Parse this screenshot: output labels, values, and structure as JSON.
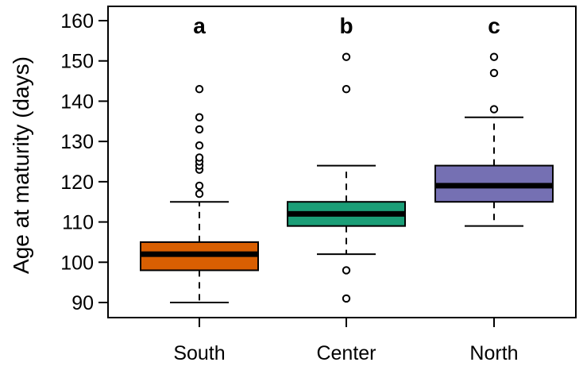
{
  "chart_data": {
    "type": "box",
    "ylabel": "Age at maturity (days)",
    "xlabel": "",
    "ylim": [
      87,
      164
    ],
    "yticks": [
      90,
      100,
      110,
      120,
      130,
      140,
      150,
      160
    ],
    "grid": false,
    "categories": [
      "South",
      "Center",
      "North"
    ],
    "letters": [
      "a",
      "b",
      "c"
    ],
    "colors": [
      "#d95f02",
      "#1b9e77",
      "#7570b3"
    ],
    "boxes": [
      {
        "name": "South",
        "whisker_low": 90,
        "q1": 98,
        "median": 102,
        "q3": 105,
        "whisker_high": 115,
        "outliers": [
          117,
          119,
          123,
          124,
          125,
          126,
          129,
          133,
          136,
          143
        ]
      },
      {
        "name": "Center",
        "whisker_low": 102,
        "q1": 109,
        "median": 112,
        "q3": 115,
        "whisker_high": 124,
        "outliers": [
          91,
          98,
          143,
          151
        ]
      },
      {
        "name": "North",
        "whisker_low": 109,
        "q1": 115,
        "median": 119,
        "q3": 124,
        "whisker_high": 136,
        "outliers": [
          138,
          147,
          151
        ]
      }
    ]
  }
}
